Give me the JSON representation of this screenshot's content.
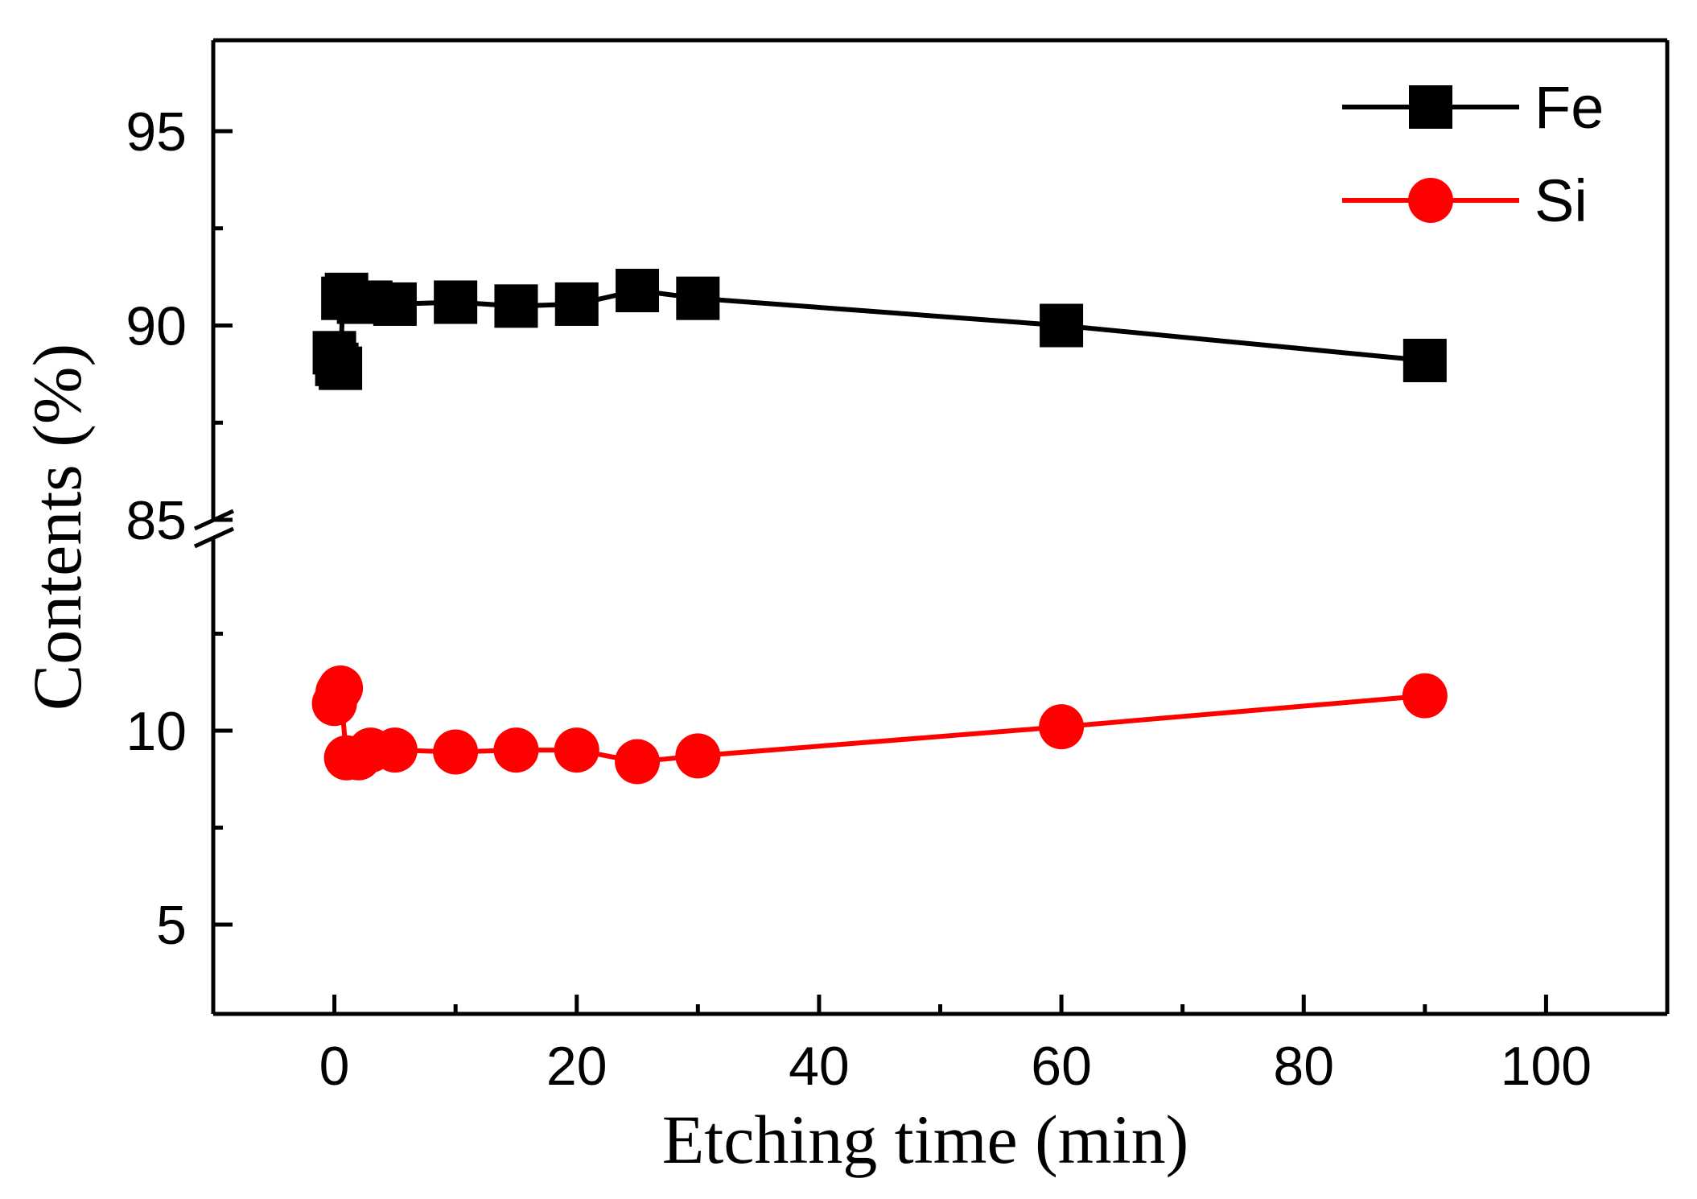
{
  "chart_data": {
    "type": "line",
    "xlabel": "Etching time (min)",
    "ylabel": "Contents (%)",
    "xlim": [
      -10,
      110
    ],
    "xticks": [
      0,
      20,
      40,
      60,
      80,
      100
    ],
    "x_minor_tick_step": 10,
    "y_axis_break": {
      "upper_segment": {
        "ylim": [
          85,
          97.5
        ],
        "ticks": [
          85,
          90,
          95
        ],
        "minor_tick_step": 2.5
      },
      "lower_segment": {
        "ylim": [
          2.5,
          12.5
        ],
        "ticks": [
          5,
          10
        ],
        "minor_tick_step": 2.5
      },
      "break_marker": "double slash on y-axis"
    },
    "grid": false,
    "legend": {
      "position": "top-right"
    },
    "series": [
      {
        "name": "Fe",
        "color": "#000000",
        "marker": "square",
        "segment": "upper",
        "x": [
          0,
          0.2,
          0.5,
          0.7,
          1,
          2,
          3,
          5,
          10,
          15,
          20,
          25,
          30,
          60,
          90
        ],
        "y": [
          89.3,
          89.0,
          88.9,
          90.7,
          90.8,
          90.6,
          90.6,
          90.55,
          90.6,
          90.5,
          90.55,
          90.9,
          90.7,
          90.0,
          89.1
        ]
      },
      {
        "name": "Si",
        "color": "#ff0000",
        "marker": "circle",
        "segment": "lower",
        "x": [
          0,
          0.3,
          0.5,
          1,
          2,
          3,
          5,
          10,
          15,
          20,
          25,
          30,
          60,
          90
        ],
        "y": [
          10.7,
          11.0,
          11.1,
          9.3,
          9.3,
          9.5,
          9.5,
          9.45,
          9.5,
          9.5,
          9.2,
          9.35,
          10.1,
          10.9
        ]
      }
    ]
  }
}
